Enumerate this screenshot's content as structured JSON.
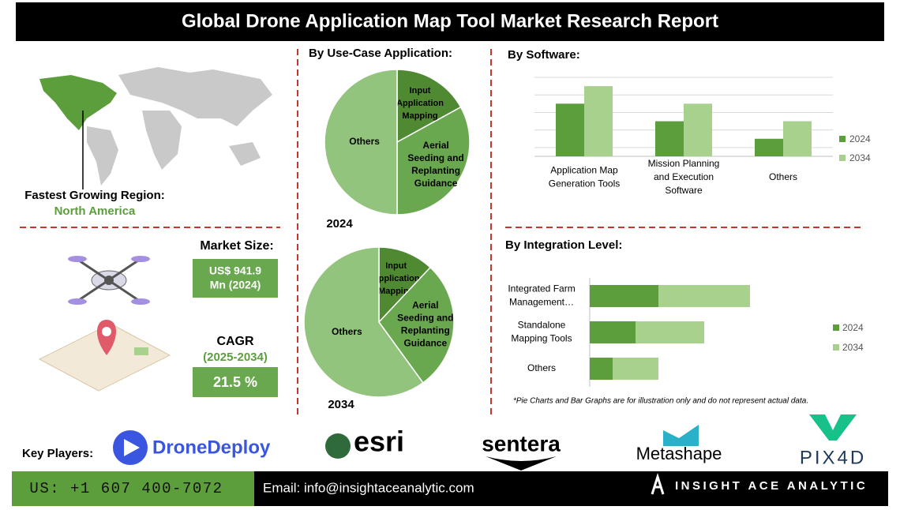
{
  "header": {
    "title": "Global Drone Application Map Tool Market Research Report"
  },
  "region": {
    "label": "Fastest Growing Region:",
    "value": "North America"
  },
  "market_size": {
    "label": "Market Size:",
    "value_lines": [
      "US$ 941.9",
      "Mn (2024)"
    ]
  },
  "cagr": {
    "label": "CAGR",
    "period": "(2025-2034)",
    "value": "21.5 %"
  },
  "note": "*Pie Charts and Bar Graphs are for illustration only and do not represent actual data.",
  "key_players": {
    "label": "Key Players:",
    "companies": [
      "DroneDeploy",
      "esri",
      "sentera",
      "Metashape",
      "PIX4D"
    ]
  },
  "footer": {
    "phone": "US: +1 607 400-7072",
    "email": "Email: info@insightaceanalytic.com",
    "brand": "INSIGHT ACE ANALYTIC"
  },
  "chart_data": [
    {
      "type": "pie",
      "title": "By Use-Case Application:",
      "label": "2024",
      "categories": [
        "Input Application Mapping",
        "Aerial Seeding and Replanting Guidance",
        "Others"
      ],
      "values": [
        17,
        33,
        50
      ],
      "colors": [
        "#4f8a33",
        "#6aa84f",
        "#93c47d"
      ]
    },
    {
      "type": "pie",
      "label": "2034",
      "categories": [
        "Input Application Mapping",
        "Aerial Seeding and Replanting Guidance",
        "Others"
      ],
      "values": [
        12,
        28,
        60
      ],
      "colors": [
        "#4f8a33",
        "#6aa84f",
        "#93c47d"
      ]
    },
    {
      "type": "bar",
      "title": "By  Software:",
      "orientation": "vertical",
      "grid": true,
      "legend": "right",
      "categories": [
        "Application Map Generation Tools",
        "Mission Planning and Execution Software",
        "Others"
      ],
      "series": [
        {
          "name": "2024",
          "color": "#5c9e3c",
          "values": [
            3,
            2,
            1
          ]
        },
        {
          "name": "2034",
          "color": "#a9d18e",
          "values": [
            4,
            3,
            2
          ]
        }
      ],
      "ylim": [
        0,
        4.5
      ]
    },
    {
      "type": "bar",
      "title": "By Integration Level:",
      "orientation": "horizontal",
      "stacked": true,
      "grid": true,
      "legend": "right",
      "categories": [
        "Integrated Farm Management…",
        "Standalone Mapping Tools",
        "Others"
      ],
      "series": [
        {
          "name": "2024",
          "color": "#5c9e3c",
          "values": [
            3,
            2,
            1
          ]
        },
        {
          "name": "2034",
          "color": "#a9d18e",
          "values": [
            4,
            3,
            2
          ]
        }
      ],
      "xlim": [
        0,
        8
      ]
    }
  ]
}
